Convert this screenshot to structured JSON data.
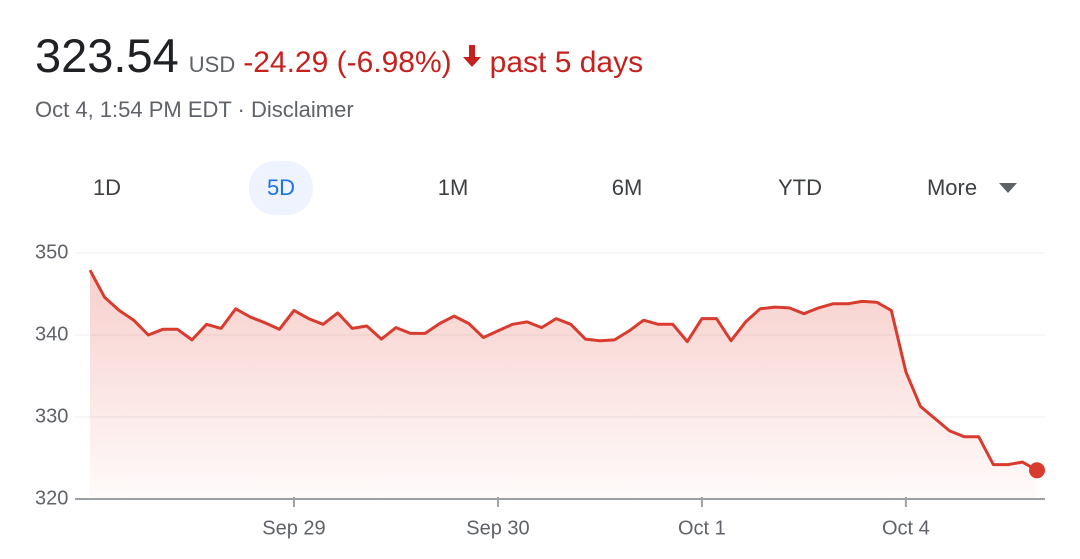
{
  "header": {
    "price": "323.54",
    "currency": "USD",
    "change": "-24.29 (-6.98%)",
    "period": "past 5 days",
    "subtitle": "Oct 4, 1:54 PM EDT · Disclaimer"
  },
  "tabs": [
    "1D",
    "5D",
    "1M",
    "6M",
    "YTD",
    "More"
  ],
  "chart_data": {
    "type": "line",
    "color": "#d93b2f",
    "grid": true,
    "categories": [
      null,
      null,
      null,
      null,
      null,
      null,
      null,
      null,
      null,
      null,
      null,
      null,
      null,
      null,
      "Sep 29",
      null,
      null,
      null,
      null,
      null,
      null,
      null,
      null,
      null,
      null,
      null,
      null,
      null,
      "Sep 30",
      null,
      null,
      null,
      null,
      null,
      null,
      null,
      null,
      null,
      null,
      null,
      null,
      null,
      "Oct 1",
      null,
      null,
      null,
      null,
      null,
      null,
      null,
      null,
      null,
      null,
      null,
      null,
      null,
      "Oct 4",
      null,
      null,
      null,
      null,
      null,
      null,
      null,
      null,
      null
    ],
    "values": [
      347.9,
      344.6,
      343,
      341.8,
      340,
      340.7,
      340.7,
      339.4,
      341.3,
      340.8,
      343.2,
      342.2,
      341.5,
      340.7,
      343,
      342,
      341.3,
      342.7,
      340.8,
      341.1,
      339.5,
      340.9,
      340.2,
      340.2,
      341.4,
      342.3,
      341.4,
      339.7,
      340.5,
      341.3,
      341.6,
      340.9,
      342,
      341.3,
      339.5,
      339.3,
      339.4,
      340.5,
      341.8,
      341.3,
      341.3,
      339.2,
      342,
      342,
      339.3,
      341.6,
      343.2,
      343.4,
      343.3,
      342.6,
      343.3,
      343.8,
      343.8,
      344.1,
      344,
      343,
      335.5,
      331.3,
      329.8,
      328.3,
      327.6,
      327.6,
      324.2,
      324.2,
      324.5,
      323.5
    ],
    "ylim": [
      320,
      350
    ],
    "yticks": [
      320,
      330,
      340,
      350
    ]
  }
}
